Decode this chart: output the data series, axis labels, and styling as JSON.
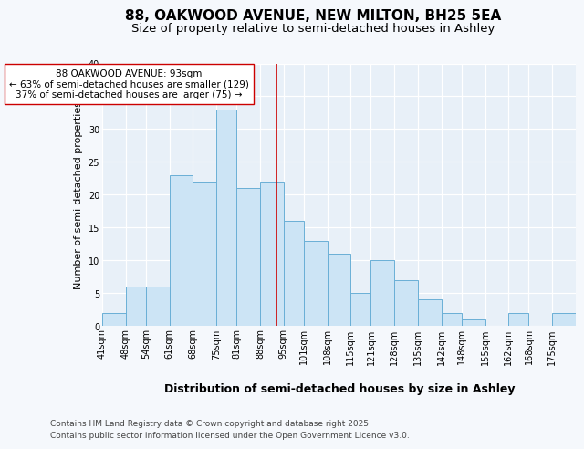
{
  "title1": "88, OAKWOOD AVENUE, NEW MILTON, BH25 5EA",
  "title2": "Size of property relative to semi-detached houses in Ashley",
  "xlabel": "Distribution of semi-detached houses by size in Ashley",
  "ylabel": "Number of semi-detached properties",
  "bin_labels": [
    "41sqm",
    "48sqm",
    "54sqm",
    "61sqm",
    "68sqm",
    "75sqm",
    "81sqm",
    "88sqm",
    "95sqm",
    "101sqm",
    "108sqm",
    "115sqm",
    "121sqm",
    "128sqm",
    "135sqm",
    "142sqm",
    "148sqm",
    "155sqm",
    "162sqm",
    "168sqm",
    "175sqm"
  ],
  "bin_edges": [
    41,
    48,
    54,
    61,
    68,
    75,
    81,
    88,
    95,
    101,
    108,
    115,
    121,
    128,
    135,
    142,
    148,
    155,
    162,
    168,
    175,
    182
  ],
  "bar_heights": [
    2,
    6,
    6,
    23,
    22,
    33,
    21,
    22,
    16,
    13,
    11,
    5,
    10,
    7,
    4,
    2,
    1,
    0,
    2,
    0,
    2
  ],
  "bar_color": "#cce4f5",
  "bar_edgecolor": "#6aafd6",
  "vline_x": 93,
  "vline_color": "#cc0000",
  "annotation_title": "88 OAKWOOD AVENUE: 93sqm",
  "annotation_line2": "← 63% of semi-detached houses are smaller (129)",
  "annotation_line3": "37% of semi-detached houses are larger (75) →",
  "annotation_box_edgecolor": "#cc0000",
  "annotation_box_facecolor": "white",
  "ylim": [
    0,
    40
  ],
  "yticks": [
    0,
    5,
    10,
    15,
    20,
    25,
    30,
    35,
    40
  ],
  "footnote1": "Contains HM Land Registry data © Crown copyright and database right 2025.",
  "footnote2": "Contains public sector information licensed under the Open Government Licence v3.0.",
  "bg_color": "#e8f0f8",
  "fig_bg_color": "#f5f8fc",
  "grid_color": "white",
  "title1_fontsize": 11,
  "title2_fontsize": 9.5,
  "xlabel_fontsize": 9,
  "ylabel_fontsize": 8,
  "tick_fontsize": 7,
  "annotation_fontsize": 7.5,
  "footnote_fontsize": 6.5
}
